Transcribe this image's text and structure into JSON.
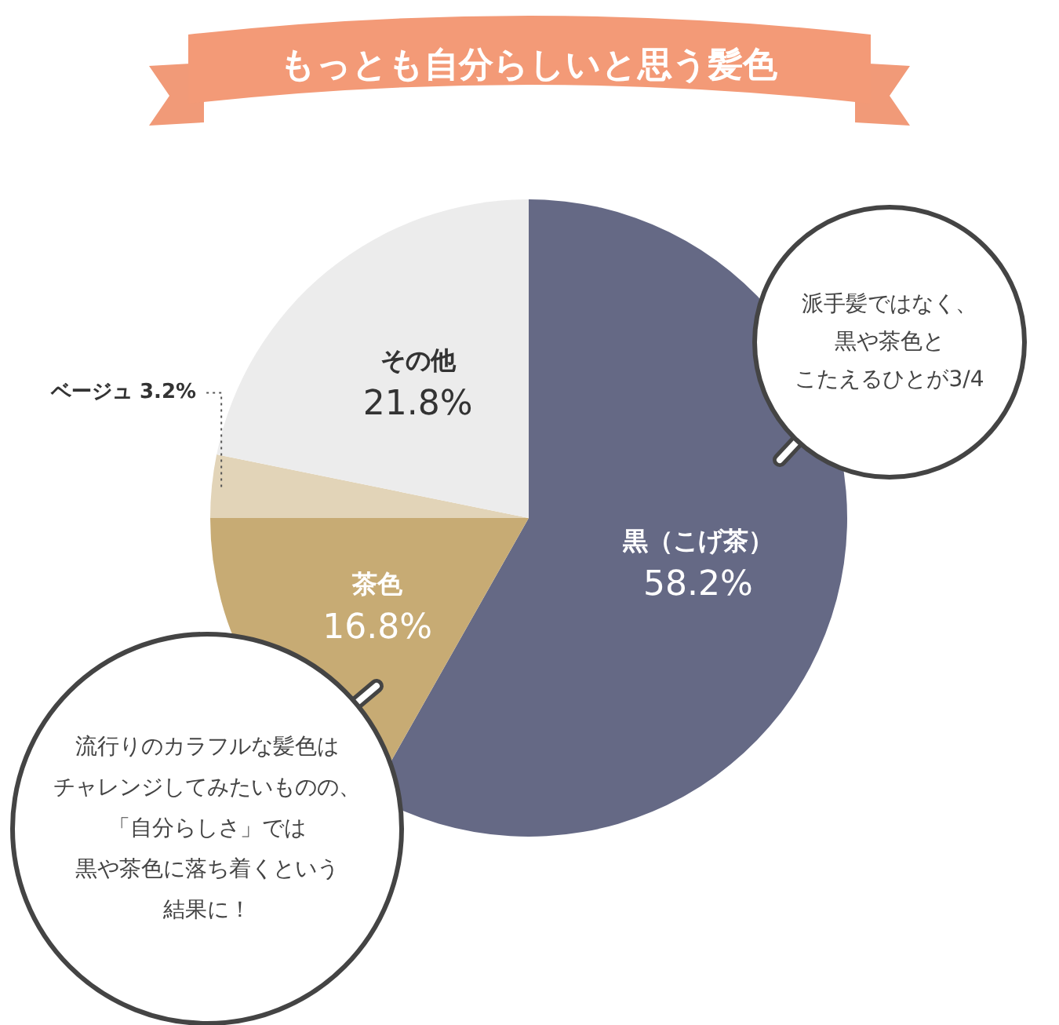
{
  "chart_data": {
    "type": "pie",
    "title": "もっとも自分らしいと思う髪色",
    "categories": [
      "黒（こげ茶）",
      "茶色",
      "ベージュ",
      "その他"
    ],
    "values": [
      58.2,
      16.8,
      3.2,
      21.8
    ],
    "colors": [
      "#656985",
      "#c7ab74",
      "#e2d4b8",
      "#ececec"
    ],
    "value_labels": [
      "58.2%",
      "16.8%",
      "3.2%",
      "21.8%"
    ],
    "annotations": [
      "派手髪ではなく、",
      "黒や茶色と",
      "こたえるひとが3/4",
      "流行りのカラフルな髪色は",
      "チャレンジしてみたいものの、",
      "「自分らしさ」では",
      "黒や茶色に落ち着くという",
      "結果に！"
    ]
  }
}
